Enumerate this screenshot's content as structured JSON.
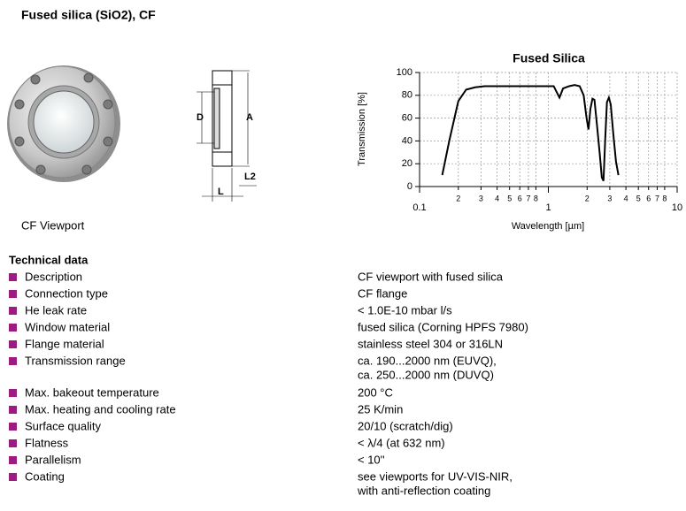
{
  "header": {
    "title": "Fused silica (SiO2), CF"
  },
  "image": {
    "caption": "CF Viewport"
  },
  "drawing": {
    "labels": {
      "d": "D",
      "a": "A",
      "l2": "L2",
      "l": "L"
    }
  },
  "chart_data": {
    "type": "line",
    "title": "Fused Silica",
    "x_label": "Wavelength [µm]",
    "y_label": "Transmission [%]",
    "x": [
      0.15,
      0.17,
      0.2,
      0.23,
      0.27,
      0.32,
      0.5,
      0.8,
      1.1,
      1.17,
      1.22,
      1.3,
      1.45,
      1.6,
      1.75,
      1.88,
      1.98,
      2.05,
      2.12,
      2.2,
      2.28,
      2.38,
      2.5,
      2.6,
      2.68,
      2.76,
      2.85,
      2.95,
      3.05,
      3.2,
      3.35,
      3.5
    ],
    "series": [
      {
        "name": "Fused Silica",
        "color": "#000000",
        "values": [
          10,
          40,
          75,
          85,
          87,
          88,
          88,
          88,
          88,
          82,
          78,
          86,
          88,
          89,
          88,
          80,
          60,
          50,
          68,
          77,
          76,
          55,
          30,
          8,
          5,
          40,
          74,
          78,
          72,
          45,
          22,
          10
        ]
      }
    ],
    "xlog": true,
    "xlim": [
      0.1,
      10
    ],
    "ylim": [
      0,
      100
    ],
    "xticks": [
      0.1,
      {
        "value": 0.2,
        "label": "2"
      },
      {
        "value": 0.3,
        "label": "3"
      },
      {
        "value": 0.4,
        "label": "4"
      },
      {
        "value": 0.5,
        "label": "5"
      },
      {
        "value": 0.6,
        "label": "6"
      },
      {
        "value": 0.7,
        "label": "7"
      },
      {
        "value": 0.8,
        "label": "8"
      },
      1,
      {
        "value": 2,
        "label": "2"
      },
      {
        "value": 3,
        "label": "3"
      },
      {
        "value": 4,
        "label": "4"
      },
      {
        "value": 5,
        "label": "5"
      },
      {
        "value": 6,
        "label": "6"
      },
      {
        "value": 7,
        "label": "7"
      },
      {
        "value": 8,
        "label": "8"
      },
      10
    ],
    "yticks": [
      0,
      20,
      40,
      60,
      80,
      100
    ],
    "grid": true
  },
  "table": {
    "title": "Technical data",
    "rows": [
      {
        "label": "Description",
        "value": [
          "CF viewport with fused silica"
        ]
      },
      {
        "label": "Connection type",
        "value": [
          "CF flange"
        ]
      },
      {
        "label": "He leak rate",
        "value": [
          "< 1.0E-10 mbar l/s"
        ]
      },
      {
        "label": "Window material",
        "value": [
          "fused silica (Corning HPFS 7980)"
        ]
      },
      {
        "label": "Flange material",
        "value": [
          "stainless steel 304 or 316LN"
        ]
      },
      {
        "label": "Transmission range",
        "value": [
          "ca. 190...2000 nm (EUVQ),",
          "ca. 250...2000 nm (DUVQ)"
        ]
      },
      {
        "label": "Max. bakeout temperature",
        "value": [
          "200 °C"
        ]
      },
      {
        "label": "Max. heating and cooling rate",
        "value": [
          "25 K/min"
        ]
      },
      {
        "label": "Surface quality",
        "value": [
          "20/10 (scratch/dig)"
        ]
      },
      {
        "label": "Flatness",
        "value": [
          "< λ/4 (at 632 nm)"
        ]
      },
      {
        "label": "Parallelism",
        "value": [
          "< 10''"
        ]
      },
      {
        "label": "Coating",
        "value": [
          "see viewports for UV-VIS-NIR,",
          "with anti-reflection coating"
        ]
      }
    ]
  }
}
